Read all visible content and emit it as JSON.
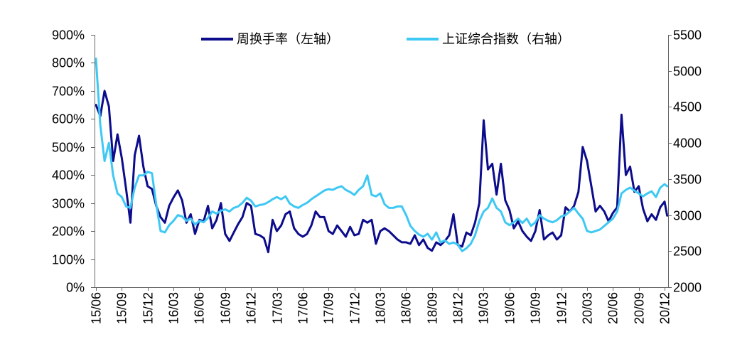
{
  "chart_data": {
    "type": "line",
    "legend": "top",
    "grid": false,
    "x_tick_labels": [
      "15/06",
      "15/09",
      "15/12",
      "16/03",
      "16/06",
      "16/09",
      "16/12",
      "17/03",
      "17/06",
      "17/09",
      "17/12",
      "18/03",
      "18/06",
      "18/09",
      "18/12",
      "19/03",
      "19/06",
      "19/09",
      "19/12",
      "20/03",
      "20/06",
      "20/09",
      "20/12"
    ],
    "y_left": {
      "tick_labels": [
        "0%",
        "100%",
        "200%",
        "300%",
        "400%",
        "500%",
        "600%",
        "700%",
        "800%",
        "900%"
      ],
      "range": [
        0,
        900
      ]
    },
    "y_right": {
      "tick_labels": [
        "2000",
        "2500",
        "3000",
        "3500",
        "4000",
        "4500",
        "5000",
        "5500"
      ],
      "range": [
        2000,
        5500
      ]
    },
    "x": [
      "2015-06-01",
      "2015-06-16",
      "2015-07-01",
      "2015-07-16",
      "2015-08-01",
      "2015-08-16",
      "2015-09-01",
      "2015-09-16",
      "2015-10-01",
      "2015-10-16",
      "2015-11-01",
      "2015-11-16",
      "2015-12-01",
      "2015-12-16",
      "2016-01-01",
      "2016-01-16",
      "2016-02-01",
      "2016-02-16",
      "2016-03-01",
      "2016-03-16",
      "2016-04-01",
      "2016-04-16",
      "2016-05-01",
      "2016-05-16",
      "2016-06-01",
      "2016-06-16",
      "2016-07-01",
      "2016-07-16",
      "2016-08-01",
      "2016-08-16",
      "2016-09-01",
      "2016-09-16",
      "2016-10-01",
      "2016-10-16",
      "2016-11-01",
      "2016-11-16",
      "2016-12-01",
      "2016-12-16",
      "2017-01-01",
      "2017-01-16",
      "2017-02-01",
      "2017-02-16",
      "2017-03-01",
      "2017-03-16",
      "2017-04-01",
      "2017-04-16",
      "2017-05-01",
      "2017-05-16",
      "2017-06-01",
      "2017-06-16",
      "2017-07-01",
      "2017-07-16",
      "2017-08-01",
      "2017-08-16",
      "2017-09-01",
      "2017-09-16",
      "2017-10-01",
      "2017-10-16",
      "2017-11-01",
      "2017-11-16",
      "2017-12-01",
      "2017-12-16",
      "2018-01-01",
      "2018-01-16",
      "2018-02-01",
      "2018-02-16",
      "2018-03-01",
      "2018-03-16",
      "2018-04-01",
      "2018-04-16",
      "2018-05-01",
      "2018-05-16",
      "2018-06-01",
      "2018-06-16",
      "2018-07-01",
      "2018-07-16",
      "2018-08-01",
      "2018-08-16",
      "2018-09-01",
      "2018-09-16",
      "2018-10-01",
      "2018-10-16",
      "2018-11-01",
      "2018-11-16",
      "2018-12-01",
      "2018-12-16",
      "2019-01-01",
      "2019-01-16",
      "2019-02-01",
      "2019-02-16",
      "2019-03-01",
      "2019-03-16",
      "2019-04-01",
      "2019-04-16",
      "2019-05-01",
      "2019-05-16",
      "2019-06-01",
      "2019-06-16",
      "2019-07-01",
      "2019-07-16",
      "2019-08-01",
      "2019-08-16",
      "2019-09-01",
      "2019-09-16",
      "2019-10-01",
      "2019-10-16",
      "2019-11-01",
      "2019-11-16",
      "2019-12-01",
      "2019-12-16",
      "2020-01-01",
      "2020-01-16",
      "2020-02-01",
      "2020-02-16",
      "2020-03-01",
      "2020-03-16",
      "2020-04-01",
      "2020-04-16",
      "2020-05-01",
      "2020-05-16",
      "2020-06-01",
      "2020-06-16",
      "2020-07-01",
      "2020-07-16",
      "2020-08-01",
      "2020-08-16",
      "2020-09-01",
      "2020-09-16",
      "2020-10-01",
      "2020-10-16",
      "2020-11-01",
      "2020-11-16",
      "2020-12-01",
      "2020-12-10"
    ],
    "series": [
      {
        "name": "周换手率（左轴）",
        "axis": "left",
        "color": "#0c0c8c",
        "values": [
          650,
          610,
          700,
          645,
          450,
          545,
          460,
          350,
          230,
          470,
          540,
          430,
          360,
          350,
          290,
          250,
          230,
          290,
          320,
          345,
          310,
          230,
          260,
          190,
          240,
          235,
          290,
          210,
          240,
          300,
          190,
          165,
          195,
          225,
          250,
          300,
          290,
          190,
          185,
          175,
          125,
          240,
          200,
          220,
          260,
          270,
          210,
          190,
          180,
          190,
          220,
          270,
          250,
          250,
          200,
          190,
          220,
          200,
          180,
          215,
          185,
          190,
          240,
          230,
          240,
          155,
          200,
          210,
          200,
          185,
          170,
          160,
          160,
          155,
          185,
          150,
          170,
          140,
          130,
          160,
          150,
          165,
          185,
          260,
          150,
          145,
          195,
          185,
          230,
          300,
          595,
          420,
          440,
          330,
          440,
          310,
          275,
          210,
          235,
          200,
          180,
          165,
          200,
          275,
          170,
          185,
          195,
          170,
          185,
          285,
          270,
          290,
          340,
          500,
          450,
          360,
          270,
          290,
          270,
          235,
          265,
          285,
          615,
          400,
          430,
          340,
          360,
          280,
          235,
          260,
          240,
          285,
          305,
          255
        ]
      },
      {
        "name": "上证综合指数（右轴）",
        "axis": "right",
        "color": "#3ec8f4",
        "values": [
          5170,
          4250,
          3750,
          4000,
          3550,
          3300,
          3250,
          3120,
          3100,
          3380,
          3550,
          3550,
          3600,
          3580,
          3150,
          2780,
          2760,
          2860,
          2920,
          3000,
          2980,
          2920,
          2950,
          2870,
          2920,
          2900,
          2960,
          3050,
          3020,
          3060,
          3080,
          3050,
          3100,
          3120,
          3170,
          3240,
          3200,
          3120,
          3140,
          3150,
          3180,
          3220,
          3250,
          3220,
          3260,
          3160,
          3120,
          3100,
          3140,
          3170,
          3220,
          3260,
          3300,
          3340,
          3360,
          3350,
          3380,
          3400,
          3350,
          3320,
          3280,
          3350,
          3400,
          3550,
          3280,
          3260,
          3300,
          3150,
          3100,
          3100,
          3120,
          3120,
          3000,
          2850,
          2780,
          2730,
          2700,
          2740,
          2660,
          2760,
          2620,
          2650,
          2600,
          2620,
          2590,
          2500,
          2540,
          2600,
          2720,
          2920,
          3050,
          3100,
          3230,
          3100,
          3050,
          2900,
          2860,
          2900,
          2950,
          2890,
          2950,
          2850,
          2900,
          3000,
          2950,
          2920,
          2900,
          2930,
          2980,
          3000,
          3050,
          3100,
          3020,
          2950,
          2780,
          2760,
          2780,
          2800,
          2850,
          2900,
          2950,
          3050,
          3300,
          3350,
          3380,
          3340,
          3300,
          3260,
          3300,
          3330,
          3250,
          3380,
          3430,
          3400
        ]
      }
    ]
  }
}
